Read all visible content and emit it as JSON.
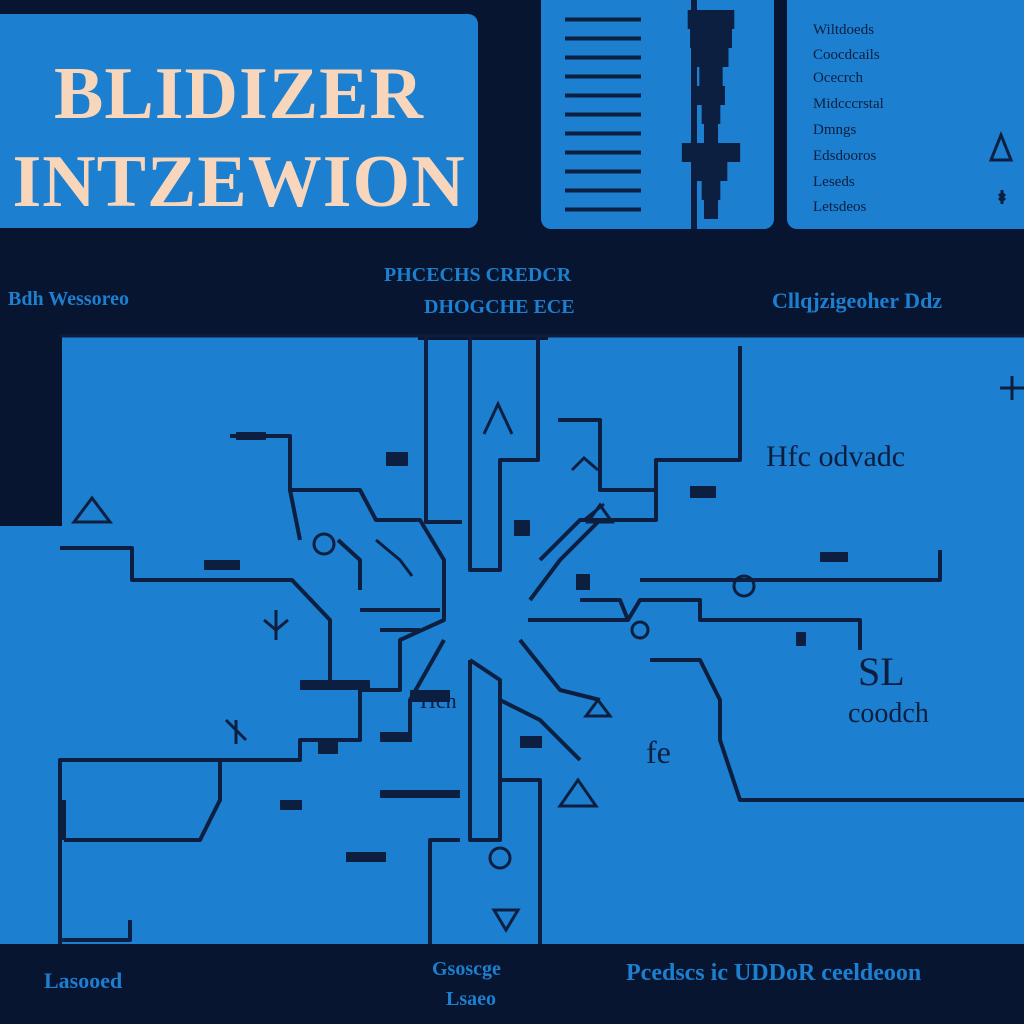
{
  "title": {
    "line1": "BLIDIZER",
    "line2": "INTZEWION"
  },
  "bar_panel": {
    "bar_levels": [
      0.2,
      0.18,
      0.15,
      0.1,
      0.12,
      0.08,
      0.06,
      0.25,
      0.14,
      0.08,
      0.05
    ]
  },
  "legend": {
    "items": [
      "Wiltdoeds",
      "Coocdcails",
      "Ocecrch",
      "Midcccrstal",
      "Dmngs",
      "Edsdooros",
      "Leseds",
      "Letsdeos"
    ]
  },
  "header_labels": {
    "left": "Bdh Wessoreo",
    "center_line1": "PHCECHS CREDCR",
    "center_line2": "DHOGCHE ECE",
    "right": "Cllqjzigeoher Ddz"
  },
  "map": {
    "labels": {
      "east_top": "Hfc odvadc",
      "east_big": "SL",
      "east_sub": "coodch",
      "center_fe": "fe",
      "center_hh": "Hch"
    }
  },
  "footer_labels": {
    "left": "Lasooed",
    "center_line1": "Gsoscge",
    "center_line2": "Lsaeo",
    "right": "Pcedscs ic UDDoR ceeldeoon"
  },
  "colors": {
    "background": "#071531",
    "panel": "#1d7fcf",
    "title_text": "#f7d6bc",
    "road": "#0c1f40"
  }
}
